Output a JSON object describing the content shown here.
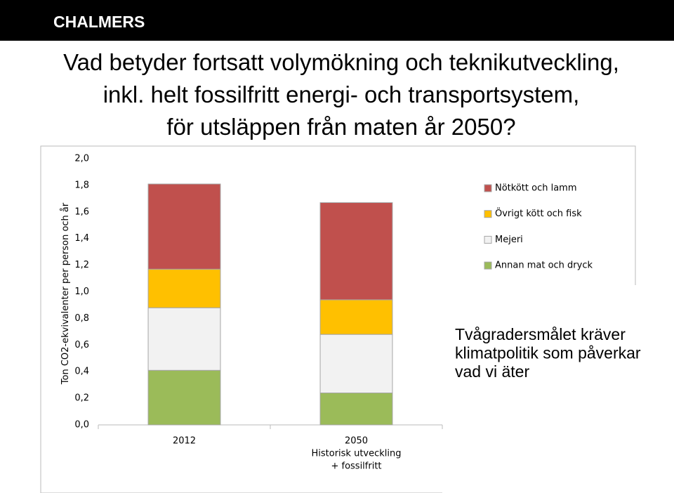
{
  "header": {
    "logo": "CHALMERS"
  },
  "title": [
    "Vad betyder fortsatt volymökning och teknikutveckling,",
    "inkl. helt fossilfritt energi- och transportsystem,",
    "för utsläppen från maten år 2050?"
  ],
  "annotation": [
    "Tvågradersmålet kräver",
    "klimatpolitik som påverkar",
    "vad vi äter"
  ],
  "chart_data": {
    "type": "stacked_bar",
    "y_label": "Ton CO2-ekvivalenter per person och år",
    "categories": [
      [
        "2012"
      ],
      [
        "2050",
        "Historisk utveckling",
        "+ fossilfritt"
      ]
    ],
    "series": [
      {
        "name": "Annan mat och dryck",
        "color": "#9bbb59",
        "values": [
          0.41,
          0.24
        ]
      },
      {
        "name": "Mejeri",
        "color": "#f2f2f2",
        "values": [
          0.47,
          0.44
        ]
      },
      {
        "name": "Övrigt kött och fisk",
        "color": "#ffc000",
        "values": [
          0.29,
          0.26
        ]
      },
      {
        "name": "Nötkött och lamm",
        "color": "#c0504d",
        "values": [
          0.64,
          0.73
        ]
      }
    ],
    "ylim": [
      0,
      2
    ],
    "yticks": [
      {
        "value": 0,
        "label": "0,0"
      },
      {
        "value": 0.2,
        "label": "0,2"
      },
      {
        "value": 0.4,
        "label": "0,4"
      },
      {
        "value": 0.6,
        "label": "0,6"
      },
      {
        "value": 0.8,
        "label": "0,8"
      },
      {
        "value": 1,
        "label": "1,0"
      },
      {
        "value": 1.2,
        "label": "1,2"
      },
      {
        "value": 1.4,
        "label": "1,4"
      },
      {
        "value": 1.6,
        "label": "1,6"
      },
      {
        "value": 1.8,
        "label": "1,8"
      },
      {
        "value": 2,
        "label": "2,0"
      }
    ],
    "legend": "right"
  }
}
